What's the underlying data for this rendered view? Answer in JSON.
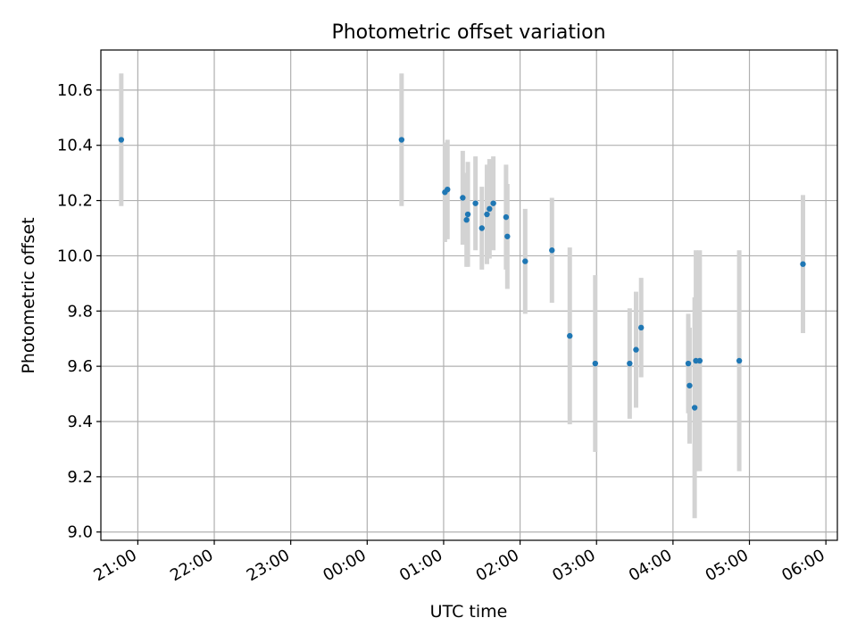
{
  "chart_data": {
    "type": "scatter",
    "title": "Photometric offset variation",
    "xlabel": "UTC time",
    "ylabel": "Photometric offset",
    "grid": true,
    "legend": "none",
    "x_tick_labels": [
      "21:00",
      "22:00",
      "23:00",
      "00:00",
      "01:00",
      "02:00",
      "03:00",
      "04:00",
      "05:00",
      "06:00"
    ],
    "y_tick_labels": [
      "9.0",
      "9.2",
      "9.4",
      "9.6",
      "9.8",
      "10.0",
      "10.2",
      "10.4",
      "10.6"
    ],
    "xlim": [
      "20:31",
      "06:09"
    ],
    "ylim": [
      8.97,
      10.745
    ],
    "point_color": "#1f77b4",
    "errorbar_color": "#d3d3d3",
    "points": [
      {
        "time": "20:47",
        "y": 10.42,
        "err": 0.24
      },
      {
        "time": "00:27",
        "y": 10.42,
        "err": 0.24
      },
      {
        "time": "01:01",
        "y": 10.23,
        "err": 0.18
      },
      {
        "time": "01:03",
        "y": 10.24,
        "err": 0.18
      },
      {
        "time": "01:15",
        "y": 10.21,
        "err": 0.17
      },
      {
        "time": "01:18",
        "y": 10.13,
        "err": 0.17
      },
      {
        "time": "01:19",
        "y": 10.15,
        "err": 0.19
      },
      {
        "time": "01:25",
        "y": 10.19,
        "err": 0.17
      },
      {
        "time": "01:30",
        "y": 10.1,
        "err": 0.15
      },
      {
        "time": "01:34",
        "y": 10.15,
        "err": 0.18
      },
      {
        "time": "01:36",
        "y": 10.17,
        "err": 0.18
      },
      {
        "time": "01:39",
        "y": 10.19,
        "err": 0.17
      },
      {
        "time": "01:49",
        "y": 10.14,
        "err": 0.19
      },
      {
        "time": "01:50",
        "y": 10.07,
        "err": 0.19
      },
      {
        "time": "02:04",
        "y": 9.98,
        "err": 0.19
      },
      {
        "time": "02:25",
        "y": 10.02,
        "err": 0.19
      },
      {
        "time": "02:39",
        "y": 9.71,
        "err": 0.32
      },
      {
        "time": "02:59",
        "y": 9.61,
        "err": 0.32
      },
      {
        "time": "03:26",
        "y": 9.61,
        "err": 0.2
      },
      {
        "time": "03:31",
        "y": 9.66,
        "err": 0.21
      },
      {
        "time": "03:35",
        "y": 9.74,
        "err": 0.18
      },
      {
        "time": "04:12",
        "y": 9.61,
        "err": 0.18
      },
      {
        "time": "04:13",
        "y": 9.53,
        "err": 0.21
      },
      {
        "time": "04:17",
        "y": 9.45,
        "err": 0.4
      },
      {
        "time": "04:18",
        "y": 9.62,
        "err": 0.4
      },
      {
        "time": "04:21",
        "y": 9.62,
        "err": 0.4
      },
      {
        "time": "04:52",
        "y": 9.62,
        "err": 0.4
      },
      {
        "time": "05:42",
        "y": 9.97,
        "err": 0.25
      }
    ]
  }
}
